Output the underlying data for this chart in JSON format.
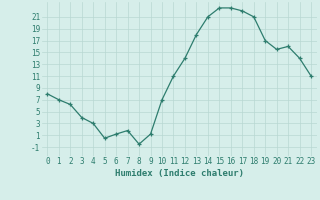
{
  "x": [
    0,
    1,
    2,
    3,
    4,
    5,
    6,
    7,
    8,
    9,
    10,
    11,
    12,
    13,
    14,
    15,
    16,
    17,
    18,
    19,
    20,
    21,
    22,
    23
  ],
  "y": [
    8,
    7,
    6.2,
    4,
    3,
    0.5,
    1.2,
    1.8,
    -0.5,
    1.2,
    7,
    11,
    14,
    18,
    21,
    22.5,
    22.5,
    22,
    21,
    17,
    15.5,
    16,
    14,
    11
  ],
  "line_color": "#2e7d6e",
  "marker": "+",
  "bg_color": "#d6eeea",
  "grid_color": "#b8d8d2",
  "xlabel": "Humidex (Indice chaleur)",
  "ylabel_ticks": [
    "-1",
    "1",
    "3",
    "5",
    "7",
    "9",
    "11",
    "13",
    "15",
    "17",
    "19",
    "21"
  ],
  "yticks": [
    -1,
    1,
    3,
    5,
    7,
    9,
    11,
    13,
    15,
    17,
    19,
    21
  ],
  "ylim": [
    -2.5,
    23.5
  ],
  "xlim": [
    -0.5,
    23.5
  ],
  "xticks": [
    0,
    1,
    2,
    3,
    4,
    5,
    6,
    7,
    8,
    9,
    10,
    11,
    12,
    13,
    14,
    15,
    16,
    17,
    18,
    19,
    20,
    21,
    22,
    23
  ],
  "tick_fontsize": 5.5,
  "xlabel_fontsize": 6.5
}
